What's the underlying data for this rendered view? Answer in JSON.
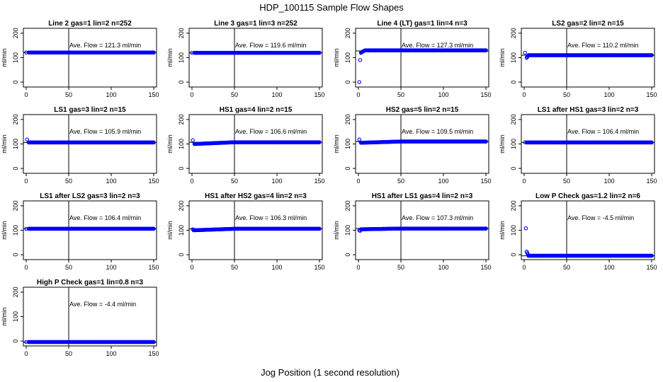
{
  "figure": {
    "title": "HDP_100115  Sample Flow Shapes",
    "xlabel": "Jog Position (1 second resolution)"
  },
  "chart_data": [
    {
      "type": "scatter",
      "title": "Line 2 gas=1 lin=2 n=252",
      "ylabel": "ml/min",
      "annotation": "Ave. Flow =  121.3  ml/min",
      "xlim": [
        0,
        150
      ],
      "ylim": [
        -20,
        220
      ],
      "xticks": [
        0,
        50,
        100,
        150
      ],
      "yticks": [
        0,
        100,
        200
      ],
      "vline": 50,
      "hline": 121.3,
      "series": [
        {
          "name": "",
          "color": "#0000ff",
          "x": [
            0,
            150
          ],
          "y": [
            121,
            121
          ]
        }
      ]
    },
    {
      "type": "scatter",
      "title": "Line 3 gas=1 lin=3 n=252",
      "ylabel": "ml/min",
      "annotation": "Ave. Flow =  119.6  ml/min",
      "xlim": [
        0,
        150
      ],
      "ylim": [
        -20,
        220
      ],
      "xticks": [
        0,
        50,
        100,
        150
      ],
      "yticks": [
        0,
        100,
        200
      ],
      "vline": 50,
      "hline": 119.6,
      "series": [
        {
          "name": "",
          "color": "#0000ff",
          "x": [
            0,
            150
          ],
          "y": [
            120,
            120
          ]
        }
      ]
    },
    {
      "type": "scatter",
      "title": "Line 4 (LT) gas=1 lin=4 n=3",
      "ylabel": "ml/min",
      "annotation": "Ave. Flow =  127.3  ml/min",
      "xlim": [
        0,
        150
      ],
      "ylim": [
        -20,
        220
      ],
      "xticks": [
        0,
        50,
        100,
        150
      ],
      "yticks": [
        0,
        100,
        200
      ],
      "vline": 50,
      "hline": 127.3,
      "series": [
        {
          "name": "",
          "color": "#0000ff",
          "x": [
            1,
            2,
            3,
            5,
            8,
            12,
            20,
            50,
            100,
            150
          ],
          "y": [
            0,
            90,
            120,
            125,
            130,
            130,
            130,
            130,
            130,
            130
          ]
        }
      ]
    },
    {
      "type": "scatter",
      "title": "LS2 gas=2 lin=2 n=15",
      "ylabel": "ml/min",
      "annotation": "Ave. Flow =  110.2  ml/min",
      "xlim": [
        0,
        150
      ],
      "ylim": [
        -20,
        220
      ],
      "xticks": [
        0,
        50,
        100,
        150
      ],
      "yticks": [
        0,
        100,
        200
      ],
      "vline": 50,
      "hline": 110.2,
      "series": [
        {
          "name": "",
          "color": "#0000ff",
          "x": [
            1,
            3,
            5,
            50,
            100,
            150
          ],
          "y": [
            120,
            100,
            110,
            110,
            110,
            110
          ]
        }
      ]
    },
    {
      "type": "scatter",
      "title": "LS1 gas=3 lin=2 n=15",
      "ylabel": "ml/min",
      "annotation": "Ave. Flow =  105.9  ml/min",
      "xlim": [
        0,
        150
      ],
      "ylim": [
        -20,
        220
      ],
      "xticks": [
        0,
        50,
        100,
        150
      ],
      "yticks": [
        0,
        100,
        200
      ],
      "vline": 50,
      "hline": 105.9,
      "series": [
        {
          "name": "",
          "color": "#0000ff",
          "x": [
            1,
            3,
            50,
            100,
            150
          ],
          "y": [
            118,
            106,
            106,
            106,
            106
          ]
        }
      ]
    },
    {
      "type": "scatter",
      "title": "HS1 gas=4 lin=2 n=15",
      "ylabel": "ml/min",
      "annotation": "Ave. Flow =  106.6  ml/min",
      "xlim": [
        0,
        150
      ],
      "ylim": [
        -20,
        220
      ],
      "xticks": [
        0,
        50,
        100,
        150
      ],
      "yticks": [
        0,
        100,
        200
      ],
      "vline": 50,
      "hline": 106.6,
      "series": [
        {
          "name": "",
          "color": "#0000ff",
          "x": [
            1,
            3,
            50,
            100,
            150
          ],
          "y": [
            115,
            100,
            107,
            107,
            107
          ]
        }
      ]
    },
    {
      "type": "scatter",
      "title": "HS2 gas=5 lin=2 n=15",
      "ylabel": "ml/min",
      "annotation": "Ave. Flow =  109.5  ml/min",
      "xlim": [
        0,
        150
      ],
      "ylim": [
        -20,
        220
      ],
      "xticks": [
        0,
        50,
        100,
        150
      ],
      "yticks": [
        0,
        100,
        200
      ],
      "vline": 50,
      "hline": 109.5,
      "series": [
        {
          "name": "",
          "color": "#0000ff",
          "x": [
            1,
            3,
            50,
            100,
            150
          ],
          "y": [
            118,
            105,
            110,
            110,
            110
          ]
        }
      ]
    },
    {
      "type": "scatter",
      "title": "LS1 after HS1 gas=3 lin=2 n=3",
      "ylabel": "ml/min",
      "annotation": "Ave. Flow =  106.4  ml/min",
      "xlim": [
        0,
        150
      ],
      "ylim": [
        -20,
        220
      ],
      "xticks": [
        0,
        50,
        100,
        150
      ],
      "yticks": [
        0,
        100,
        200
      ],
      "vline": 50,
      "hline": 106.4,
      "series": [
        {
          "name": "",
          "color": "#0000ff",
          "x": [
            1,
            3,
            50,
            100,
            150
          ],
          "y": [
            107,
            106,
            106,
            106,
            106
          ]
        }
      ]
    },
    {
      "type": "scatter",
      "title": "LS1 after LS2 gas=3 lin=2 n=3",
      "ylabel": "ml/min",
      "annotation": "Ave. Flow =  106.4  ml/min",
      "xlim": [
        0,
        150
      ],
      "ylim": [
        -20,
        220
      ],
      "xticks": [
        0,
        50,
        100,
        150
      ],
      "yticks": [
        0,
        100,
        200
      ],
      "vline": 50,
      "hline": 106.4,
      "series": [
        {
          "name": "",
          "color": "#0000ff",
          "x": [
            0,
            150
          ],
          "y": [
            106,
            106
          ]
        }
      ]
    },
    {
      "type": "scatter",
      "title": "HS1 after HS2 gas=4 lin=2 n=3",
      "ylabel": "ml/min",
      "annotation": "Ave. Flow =  106.3  ml/min",
      "xlim": [
        0,
        150
      ],
      "ylim": [
        -20,
        220
      ],
      "xticks": [
        0,
        50,
        100,
        150
      ],
      "yticks": [
        0,
        100,
        200
      ],
      "vline": 50,
      "hline": 106.3,
      "series": [
        {
          "name": "",
          "color": "#0000ff",
          "x": [
            1,
            2,
            50,
            100,
            150
          ],
          "y": [
            104,
            100,
            106,
            106,
            106
          ]
        }
      ]
    },
    {
      "type": "scatter",
      "title": "HS1 after LS1 gas=4 lin=2 n=3",
      "ylabel": "ml/min",
      "annotation": "Ave. Flow =  107.3  ml/min",
      "xlim": [
        0,
        150
      ],
      "ylim": [
        -20,
        220
      ],
      "xticks": [
        0,
        50,
        100,
        150
      ],
      "yticks": [
        0,
        100,
        200
      ],
      "vline": 50,
      "hline": 107.3,
      "series": [
        {
          "name": "",
          "color": "#0000ff",
          "x": [
            1,
            2,
            3,
            50,
            100,
            150
          ],
          "y": [
            100,
            98,
            104,
            107,
            107,
            107
          ]
        }
      ]
    },
    {
      "type": "scatter",
      "title": "Low P Check gas=1.2 lin=2 n=6",
      "ylabel": "ml/min",
      "annotation": "Ave. Flow =  -4.5  ml/min",
      "xlim": [
        0,
        150
      ],
      "ylim": [
        -20,
        220
      ],
      "xticks": [
        0,
        50,
        100,
        150
      ],
      "yticks": [
        0,
        100,
        200
      ],
      "vline": 50,
      "hline": -4.5,
      "series": [
        {
          "name": "",
          "color": "#0000ff",
          "x": [
            2,
            3,
            5,
            50,
            100,
            150
          ],
          "y": [
            108,
            12,
            -4,
            -4,
            -4,
            -4
          ]
        }
      ]
    },
    {
      "type": "scatter",
      "title": "High P Check gas=1 lin=0.8 n=3",
      "ylabel": "ml/min",
      "annotation": "Ave. Flow =  -4.4  ml/min",
      "xlim": [
        0,
        150
      ],
      "ylim": [
        -20,
        220
      ],
      "xticks": [
        0,
        50,
        100,
        150
      ],
      "yticks": [
        0,
        100,
        200
      ],
      "vline": 50,
      "hline": -4.4,
      "series": [
        {
          "name": "",
          "color": "#0000ff",
          "x": [
            0,
            150
          ],
          "y": [
            -4,
            -4
          ]
        }
      ]
    }
  ]
}
